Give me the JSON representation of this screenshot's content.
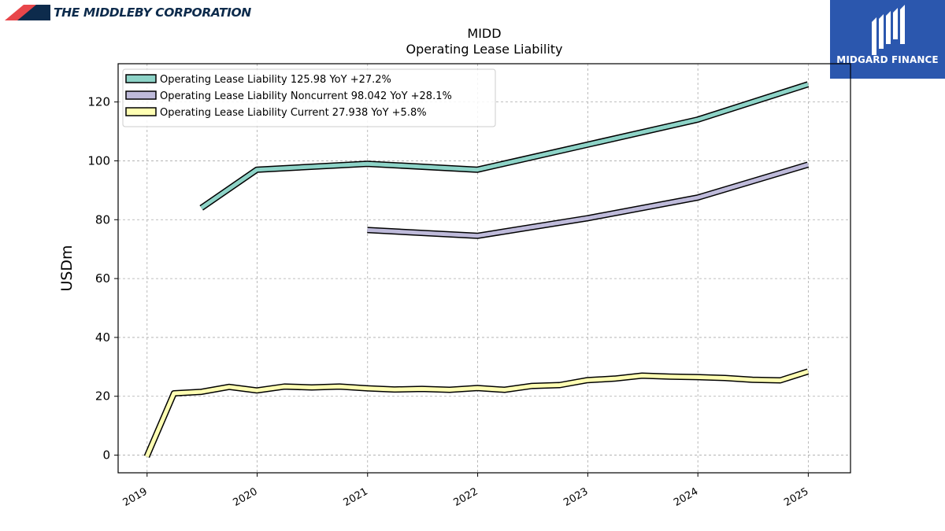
{
  "header": {
    "company": "THE MIDDLEBY CORPORATION",
    "brand": "MIDGARD FINANCE"
  },
  "colors": {
    "navy": "#0d2b4c",
    "logo_red": "#e8464a",
    "brand_bg": "#2b57ae"
  },
  "chart_data": {
    "type": "line",
    "title": "MIDD",
    "subtitle": "Operating Lease Liability",
    "xlabel": "",
    "ylabel": "USDm",
    "xlim": [
      "2018-09-27",
      "2025-05-21"
    ],
    "ylim": [
      -6,
      133
    ],
    "yticks": [
      0,
      20,
      40,
      60,
      80,
      100,
      120
    ],
    "xticks": [
      "2019",
      "2020",
      "2021",
      "2022",
      "2023",
      "2024",
      "2025"
    ],
    "grid": true,
    "legend_position": "top-left",
    "series": [
      {
        "name": "Operating Lease Liability",
        "legend": "Operating Lease Liability  125.98 YoY +27.2%",
        "color": "#8dd3c7",
        "x": [
          "2019-06-30",
          "2019-12-31",
          "2020-12-31",
          "2021-12-31",
          "2022-12-31",
          "2023-12-31",
          "2024-12-31"
        ],
        "y": [
          84,
          97,
          99,
          97,
          105.5,
          114,
          126
        ]
      },
      {
        "name": "Operating Lease Liability Noncurrent",
        "legend": "Operating Lease Liability Noncurrent  98.042 YoY +28.1%",
        "color": "#bebada",
        "x": [
          "2020-12-31",
          "2021-12-31",
          "2022-12-31",
          "2023-12-31",
          "2024-12-31"
        ],
        "y": [
          76.5,
          74.5,
          80.5,
          87.5,
          98.7
        ]
      },
      {
        "name": "Operating Lease Liability Current",
        "legend": "Operating Lease Liability Current  27.938 YoY +5.8%",
        "color": "#ffffb3",
        "x": [
          "2018-12-31",
          "2019-03-31",
          "2019-06-30",
          "2019-09-30",
          "2019-12-31",
          "2020-03-31",
          "2020-06-30",
          "2020-09-30",
          "2020-12-31",
          "2021-03-31",
          "2021-06-30",
          "2021-09-30",
          "2021-12-31",
          "2022-03-31",
          "2022-06-30",
          "2022-09-30",
          "2022-12-31",
          "2023-03-31",
          "2023-06-30",
          "2023-09-30",
          "2023-12-31",
          "2024-03-31",
          "2024-06-30",
          "2024-09-30",
          "2024-12-31"
        ],
        "y": [
          -0.5,
          21,
          21.5,
          23.2,
          22,
          23.3,
          23,
          23.3,
          22.7,
          22.3,
          22.5,
          22.2,
          22.8,
          22.2,
          23.5,
          23.8,
          25.5,
          26,
          27,
          26.7,
          26.5,
          26.2,
          25.6,
          25.4,
          28.4
        ]
      }
    ]
  }
}
